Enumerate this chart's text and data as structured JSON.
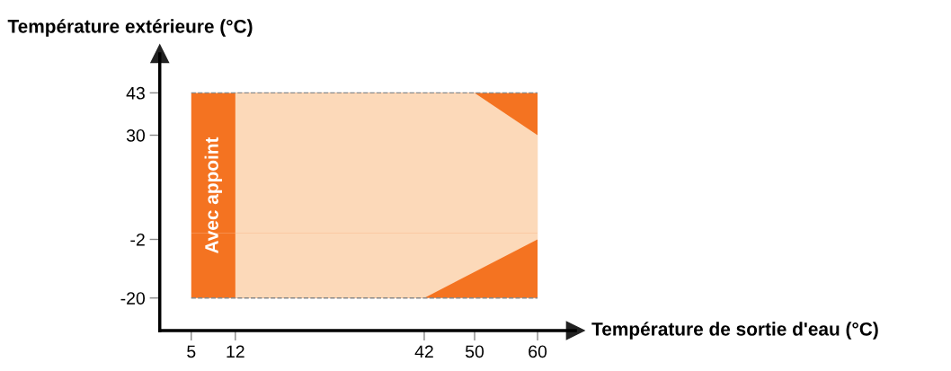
{
  "chart_data": {
    "type": "area",
    "xlabel": "Température de sortie d'eau (°C)",
    "ylabel": "Température extérieure (°C)",
    "xlim": [
      0,
      66
    ],
    "ylim": [
      -30,
      55
    ],
    "xticks": [
      5,
      12,
      42,
      50,
      60
    ],
    "yticks": [
      -20,
      -2,
      30,
      43
    ],
    "series": [
      {
        "color": "#f47321",
        "x": [
          5,
          60
        ],
        "values": [
          43,
          43
        ],
        "line_style": "dashed"
      },
      {
        "color": "#f47321",
        "x": [
          5,
          60
        ],
        "values": [
          -20,
          -20
        ],
        "line_style": "dashed"
      },
      {
        "color": "#fcd9b9",
        "x": [
          12,
          50,
          60
        ],
        "values": [
          43,
          43,
          30
        ]
      },
      {
        "color": "#fcd9b9",
        "x": [
          12,
          42,
          60
        ],
        "values": [
          -20,
          -20,
          -2
        ]
      }
    ],
    "annotations": [
      "Avec appoint"
    ]
  }
}
